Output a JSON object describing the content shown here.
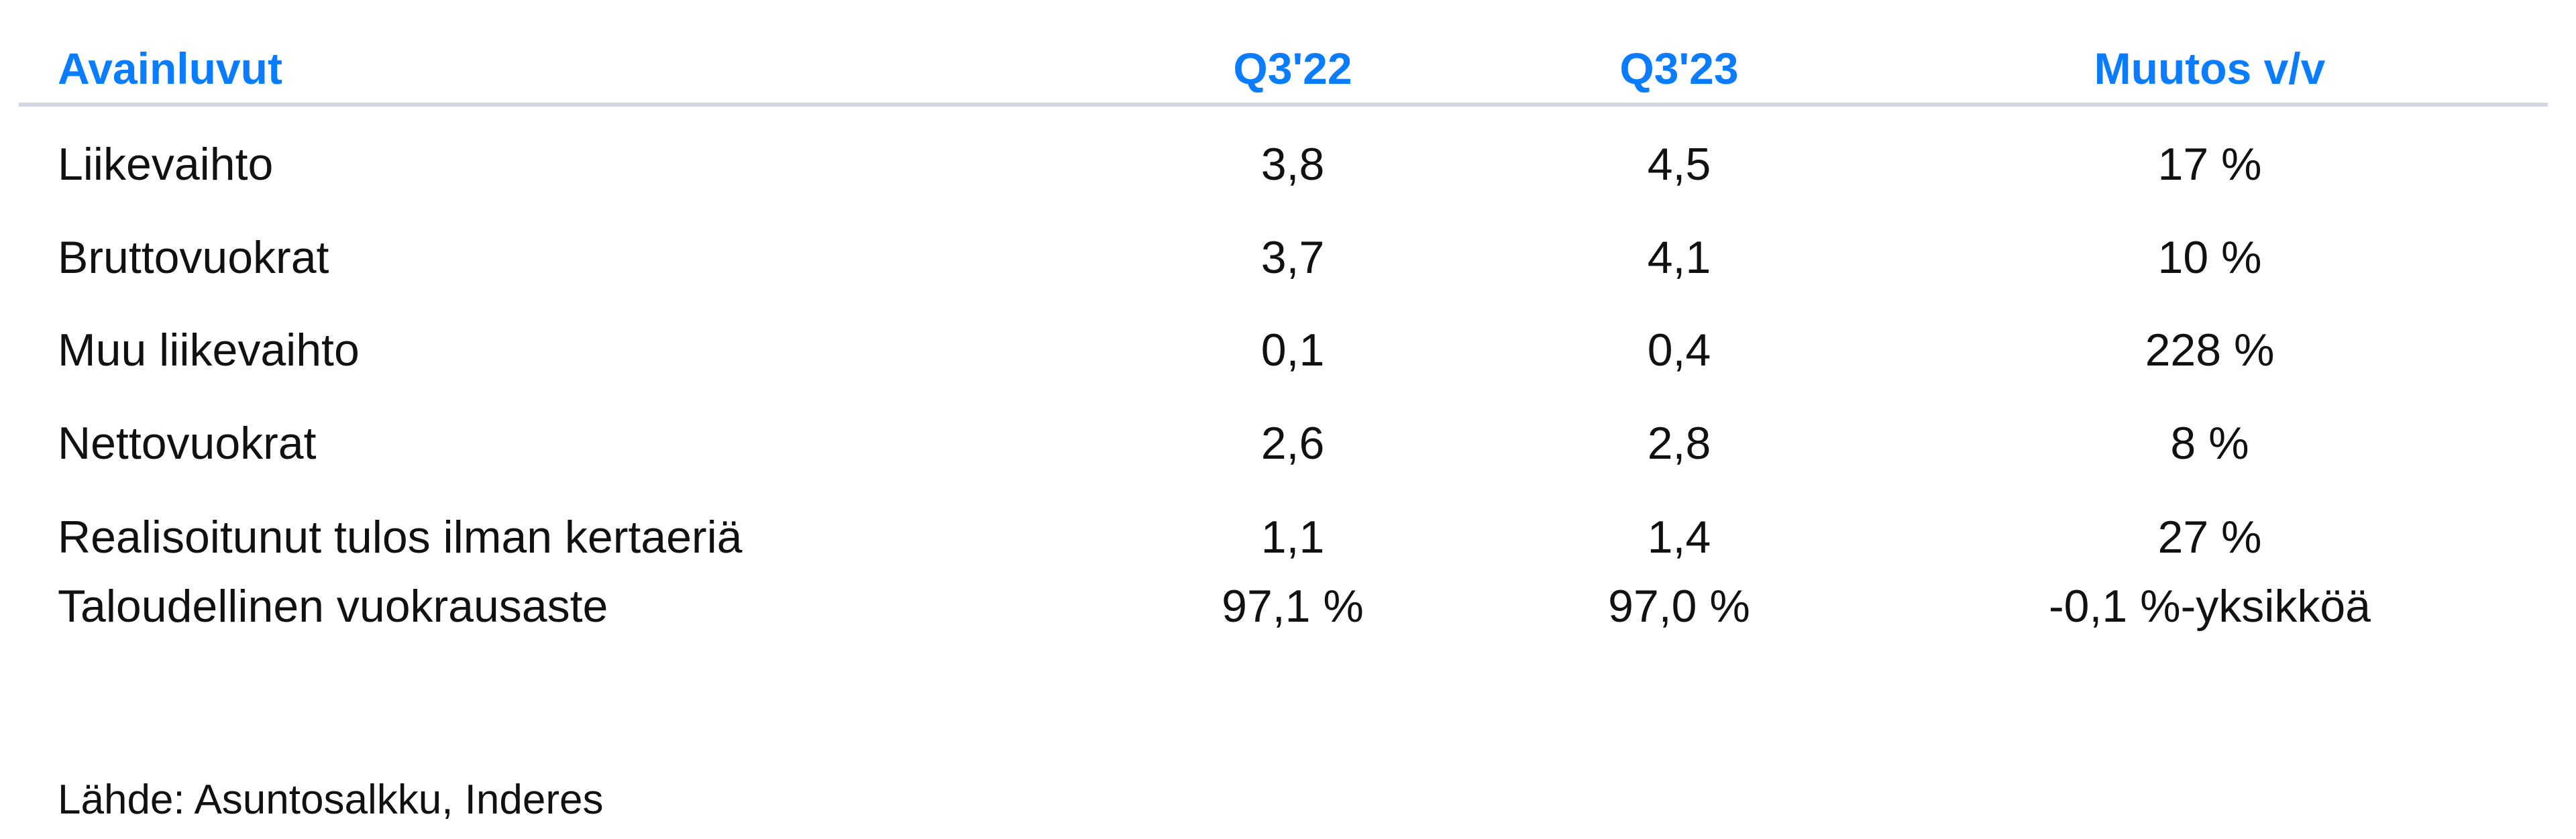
{
  "header": {
    "label": "Avainluvut",
    "col1": "Q3'22",
    "col2": "Q3'23",
    "col3": "Muutos v/v"
  },
  "rows": [
    {
      "label": "Liikevaihto",
      "q322": "3,8",
      "q323": "4,5",
      "change": "17 %"
    },
    {
      "label": "Bruttovuokrat",
      "q322": "3,7",
      "q323": "4,1",
      "change": "10 %"
    },
    {
      "label": "Muu liikevaihto",
      "q322": "0,1",
      "q323": "0,4",
      "change": "228 %"
    },
    {
      "label": "Nettovuokrat",
      "q322": "2,6",
      "q323": "2,8",
      "change": "8 %"
    },
    {
      "label": "Realisoitunut tulos ilman kertaeriä",
      "q322": "1,1",
      "q323": "1,4",
      "change": "27 %"
    },
    {
      "label": "Taloudellinen vuokrausaste",
      "q322": "97,1 %",
      "q323": "97,0 %",
      "change": "-0,1 %-yksikköä"
    }
  ],
  "source": "Lähde: Asuntosalkku, Inderes",
  "colors": {
    "header": "#0a7cff",
    "rule": "#d4d7e3"
  }
}
